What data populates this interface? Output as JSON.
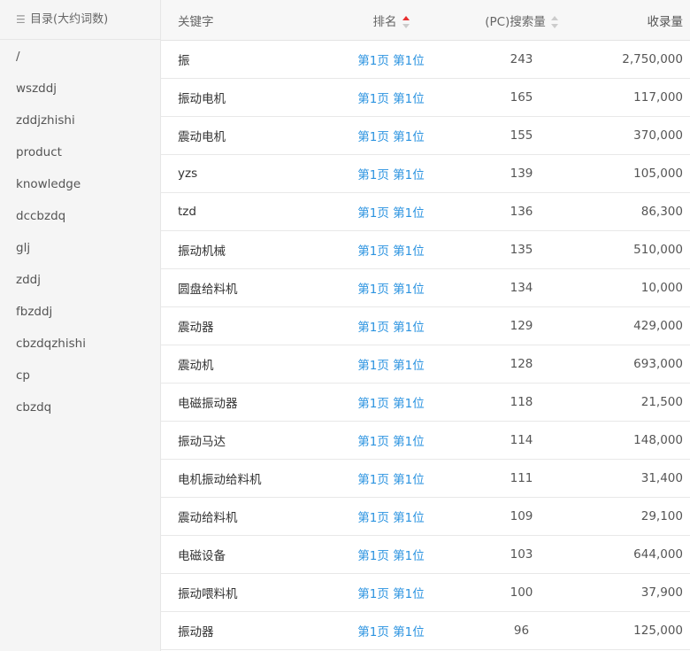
{
  "sidebar": {
    "title": "目录(大约词数)",
    "icon": "list-icon",
    "items": [
      "/",
      "wszddj",
      "zddjzhishi",
      "product",
      "knowledge",
      "dccbzdq",
      "glj",
      "zddj",
      "fbzddj",
      "cbzdqzhishi",
      "cp",
      "cbzdq"
    ]
  },
  "table": {
    "headers": {
      "keyword": "关键字",
      "rank": "排名",
      "search": "(PC)搜索量",
      "indexed": "收录量"
    },
    "sort": {
      "column": "rank",
      "direction": "asc",
      "active_color": "#e83030"
    },
    "rows": [
      [
        "振",
        "第1页 第1位",
        "243",
        "2,750,000"
      ],
      [
        "振动电机",
        "第1页 第1位",
        "165",
        "117,000"
      ],
      [
        "震动电机",
        "第1页 第1位",
        "155",
        "370,000"
      ],
      [
        "yzs",
        "第1页 第1位",
        "139",
        "105,000"
      ],
      [
        "tzd",
        "第1页 第1位",
        "136",
        "86,300"
      ],
      [
        "振动机械",
        "第1页 第1位",
        "135",
        "510,000"
      ],
      [
        "圆盘给料机",
        "第1页 第1位",
        "134",
        "10,000"
      ],
      [
        "震动器",
        "第1页 第1位",
        "129",
        "429,000"
      ],
      [
        "震动机",
        "第1页 第1位",
        "128",
        "693,000"
      ],
      [
        "电磁振动器",
        "第1页 第1位",
        "118",
        "21,500"
      ],
      [
        "振动马达",
        "第1页 第1位",
        "114",
        "148,000"
      ],
      [
        "电机振动给料机",
        "第1页 第1位",
        "111",
        "31,400"
      ],
      [
        "震动给料机",
        "第1页 第1位",
        "109",
        "29,100"
      ],
      [
        "电磁设备",
        "第1页 第1位",
        "103",
        "644,000"
      ],
      [
        "振动喂料机",
        "第1页 第1位",
        "100",
        "37,900"
      ],
      [
        "振动器",
        "第1页 第1位",
        "96",
        "125,000"
      ]
    ]
  },
  "colors": {
    "link": "#2b93e0",
    "sidebar_bg": "#f5f5f5",
    "header_bg": "#f7f7f7"
  }
}
